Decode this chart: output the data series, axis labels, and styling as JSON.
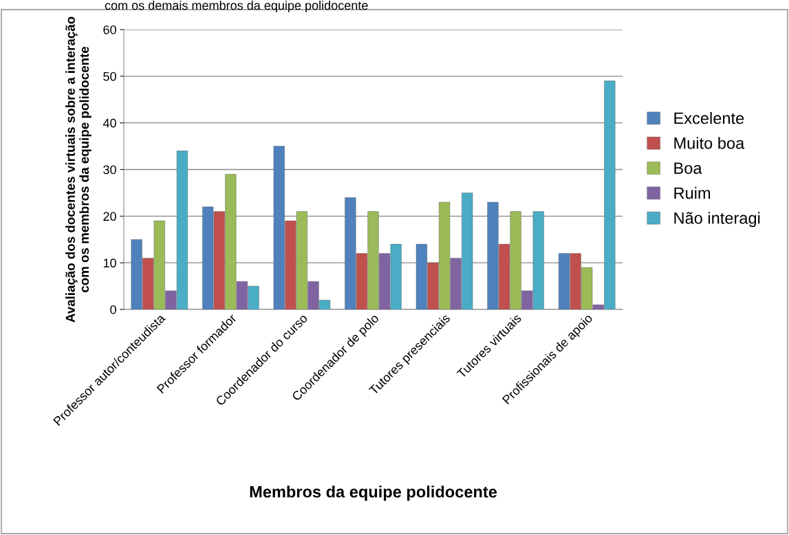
{
  "chart_data": {
    "type": "bar",
    "title": "com os demais membros da equipe polidocente",
    "xlabel": "Membros da equipe polidocente",
    "ylabel": "Avaliação dos docentes virtuais sobre a interação\ncom os membros da equipe polidocente",
    "categories": [
      "Professor autor/conteudista",
      "Professor formador",
      "Coordenador do curso",
      "Coordenador de polo",
      "Tutores presenciais",
      "Tutores virtuais",
      "Profissionais de apoio"
    ],
    "series": [
      {
        "name": "Excelente",
        "color": "#4f81bd",
        "values": [
          15,
          22,
          35,
          24,
          14,
          23,
          12
        ]
      },
      {
        "name": "Muito boa",
        "color": "#c0504d",
        "values": [
          11,
          21,
          19,
          12,
          10,
          14,
          12
        ]
      },
      {
        "name": "Boa",
        "color": "#9bbb59",
        "values": [
          19,
          29,
          21,
          21,
          23,
          21,
          9
        ]
      },
      {
        "name": "Ruim",
        "color": "#8064a2",
        "values": [
          4,
          6,
          6,
          12,
          11,
          4,
          1
        ]
      },
      {
        "name": "Não interagi",
        "color": "#4bacc6",
        "values": [
          34,
          5,
          2,
          14,
          25,
          21,
          49
        ]
      }
    ],
    "ylim": [
      0,
      60
    ],
    "yticks": [
      0,
      10,
      20,
      30,
      40,
      50,
      60
    ],
    "grid": "y",
    "legend": "right"
  }
}
